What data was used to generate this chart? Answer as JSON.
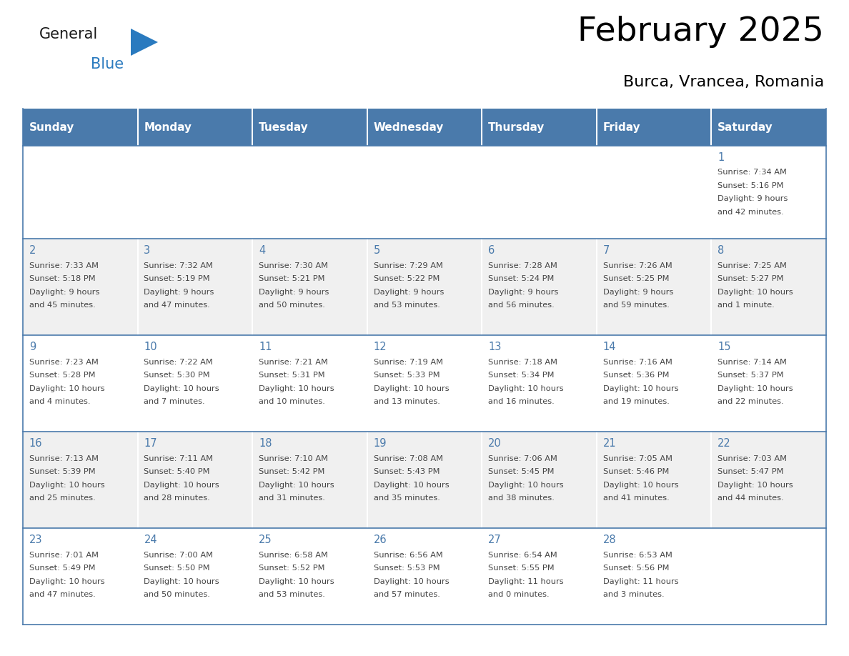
{
  "title": "February 2025",
  "subtitle": "Burca, Vrancea, Romania",
  "days_of_week": [
    "Sunday",
    "Monday",
    "Tuesday",
    "Wednesday",
    "Thursday",
    "Friday",
    "Saturday"
  ],
  "header_bg": "#4a7aab",
  "header_text": "#ffffff",
  "cell_bg_odd": "#f0f0f0",
  "cell_bg_even": "#ffffff",
  "divider_color": "#4a7aab",
  "text_color": "#444444",
  "day_number_color": "#4a7aab",
  "logo_general_color": "#1a1a1a",
  "logo_blue_color": "#2a7abf",
  "calendar_data": [
    {
      "day": 1,
      "col": 6,
      "row": 0,
      "sunrise": "7:34 AM",
      "sunset": "5:16 PM",
      "daylight_h": "9 hours",
      "daylight_m": "and 42 minutes."
    },
    {
      "day": 2,
      "col": 0,
      "row": 1,
      "sunrise": "7:33 AM",
      "sunset": "5:18 PM",
      "daylight_h": "9 hours",
      "daylight_m": "and 45 minutes."
    },
    {
      "day": 3,
      "col": 1,
      "row": 1,
      "sunrise": "7:32 AM",
      "sunset": "5:19 PM",
      "daylight_h": "9 hours",
      "daylight_m": "and 47 minutes."
    },
    {
      "day": 4,
      "col": 2,
      "row": 1,
      "sunrise": "7:30 AM",
      "sunset": "5:21 PM",
      "daylight_h": "9 hours",
      "daylight_m": "and 50 minutes."
    },
    {
      "day": 5,
      "col": 3,
      "row": 1,
      "sunrise": "7:29 AM",
      "sunset": "5:22 PM",
      "daylight_h": "9 hours",
      "daylight_m": "and 53 minutes."
    },
    {
      "day": 6,
      "col": 4,
      "row": 1,
      "sunrise": "7:28 AM",
      "sunset": "5:24 PM",
      "daylight_h": "9 hours",
      "daylight_m": "and 56 minutes."
    },
    {
      "day": 7,
      "col": 5,
      "row": 1,
      "sunrise": "7:26 AM",
      "sunset": "5:25 PM",
      "daylight_h": "9 hours",
      "daylight_m": "and 59 minutes."
    },
    {
      "day": 8,
      "col": 6,
      "row": 1,
      "sunrise": "7:25 AM",
      "sunset": "5:27 PM",
      "daylight_h": "10 hours",
      "daylight_m": "and 1 minute."
    },
    {
      "day": 9,
      "col": 0,
      "row": 2,
      "sunrise": "7:23 AM",
      "sunset": "5:28 PM",
      "daylight_h": "10 hours",
      "daylight_m": "and 4 minutes."
    },
    {
      "day": 10,
      "col": 1,
      "row": 2,
      "sunrise": "7:22 AM",
      "sunset": "5:30 PM",
      "daylight_h": "10 hours",
      "daylight_m": "and 7 minutes."
    },
    {
      "day": 11,
      "col": 2,
      "row": 2,
      "sunrise": "7:21 AM",
      "sunset": "5:31 PM",
      "daylight_h": "10 hours",
      "daylight_m": "and 10 minutes."
    },
    {
      "day": 12,
      "col": 3,
      "row": 2,
      "sunrise": "7:19 AM",
      "sunset": "5:33 PM",
      "daylight_h": "10 hours",
      "daylight_m": "and 13 minutes."
    },
    {
      "day": 13,
      "col": 4,
      "row": 2,
      "sunrise": "7:18 AM",
      "sunset": "5:34 PM",
      "daylight_h": "10 hours",
      "daylight_m": "and 16 minutes."
    },
    {
      "day": 14,
      "col": 5,
      "row": 2,
      "sunrise": "7:16 AM",
      "sunset": "5:36 PM",
      "daylight_h": "10 hours",
      "daylight_m": "and 19 minutes."
    },
    {
      "day": 15,
      "col": 6,
      "row": 2,
      "sunrise": "7:14 AM",
      "sunset": "5:37 PM",
      "daylight_h": "10 hours",
      "daylight_m": "and 22 minutes."
    },
    {
      "day": 16,
      "col": 0,
      "row": 3,
      "sunrise": "7:13 AM",
      "sunset": "5:39 PM",
      "daylight_h": "10 hours",
      "daylight_m": "and 25 minutes."
    },
    {
      "day": 17,
      "col": 1,
      "row": 3,
      "sunrise": "7:11 AM",
      "sunset": "5:40 PM",
      "daylight_h": "10 hours",
      "daylight_m": "and 28 minutes."
    },
    {
      "day": 18,
      "col": 2,
      "row": 3,
      "sunrise": "7:10 AM",
      "sunset": "5:42 PM",
      "daylight_h": "10 hours",
      "daylight_m": "and 31 minutes."
    },
    {
      "day": 19,
      "col": 3,
      "row": 3,
      "sunrise": "7:08 AM",
      "sunset": "5:43 PM",
      "daylight_h": "10 hours",
      "daylight_m": "and 35 minutes."
    },
    {
      "day": 20,
      "col": 4,
      "row": 3,
      "sunrise": "7:06 AM",
      "sunset": "5:45 PM",
      "daylight_h": "10 hours",
      "daylight_m": "and 38 minutes."
    },
    {
      "day": 21,
      "col": 5,
      "row": 3,
      "sunrise": "7:05 AM",
      "sunset": "5:46 PM",
      "daylight_h": "10 hours",
      "daylight_m": "and 41 minutes."
    },
    {
      "day": 22,
      "col": 6,
      "row": 3,
      "sunrise": "7:03 AM",
      "sunset": "5:47 PM",
      "daylight_h": "10 hours",
      "daylight_m": "and 44 minutes."
    },
    {
      "day": 23,
      "col": 0,
      "row": 4,
      "sunrise": "7:01 AM",
      "sunset": "5:49 PM",
      "daylight_h": "10 hours",
      "daylight_m": "and 47 minutes."
    },
    {
      "day": 24,
      "col": 1,
      "row": 4,
      "sunrise": "7:00 AM",
      "sunset": "5:50 PM",
      "daylight_h": "10 hours",
      "daylight_m": "and 50 minutes."
    },
    {
      "day": 25,
      "col": 2,
      "row": 4,
      "sunrise": "6:58 AM",
      "sunset": "5:52 PM",
      "daylight_h": "10 hours",
      "daylight_m": "and 53 minutes."
    },
    {
      "day": 26,
      "col": 3,
      "row": 4,
      "sunrise": "6:56 AM",
      "sunset": "5:53 PM",
      "daylight_h": "10 hours",
      "daylight_m": "and 57 minutes."
    },
    {
      "day": 27,
      "col": 4,
      "row": 4,
      "sunrise": "6:54 AM",
      "sunset": "5:55 PM",
      "daylight_h": "11 hours",
      "daylight_m": "and 0 minutes."
    },
    {
      "day": 28,
      "col": 5,
      "row": 4,
      "sunrise": "6:53 AM",
      "sunset": "5:56 PM",
      "daylight_h": "11 hours",
      "daylight_m": "and 3 minutes."
    }
  ]
}
